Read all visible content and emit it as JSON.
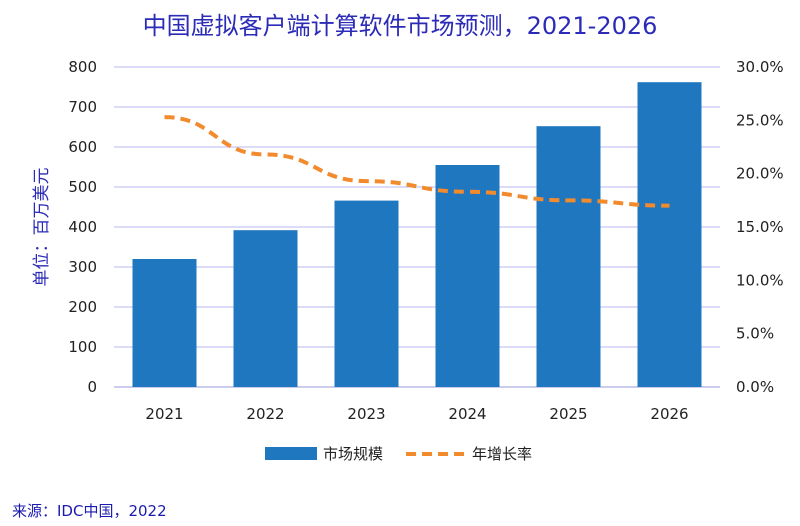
{
  "chart_data": {
    "type": "bar",
    "title": "中国虚拟客户端计算软件市场预测，2021-2026",
    "ylabel": "单位：百万美元",
    "categories": [
      "2021",
      "2022",
      "2023",
      "2024",
      "2025",
      "2026"
    ],
    "ylim": [
      0,
      800
    ],
    "yticks": [
      "0",
      "100",
      "200",
      "300",
      "400",
      "500",
      "600",
      "700",
      "800"
    ],
    "y2lim": [
      0,
      30
    ],
    "y2ticks": [
      "0.0%",
      "5.0%",
      "10.0%",
      "15.0%",
      "20.0%",
      "25.0%",
      "30.0%"
    ],
    "grid": true,
    "legend_position": "bottom",
    "series": [
      {
        "name": "市场规模",
        "type": "bar",
        "axis": "left",
        "color": "#1f77c0",
        "values": [
          320,
          392,
          466,
          555,
          652,
          762
        ]
      },
      {
        "name": "年增长率",
        "type": "line",
        "style": "dashed",
        "axis": "right",
        "color": "#f28a2e",
        "values": [
          25.3,
          21.8,
          19.3,
          18.3,
          17.5,
          17.0
        ]
      }
    ]
  },
  "footer": {
    "source": "来源：IDC中国，2022"
  }
}
